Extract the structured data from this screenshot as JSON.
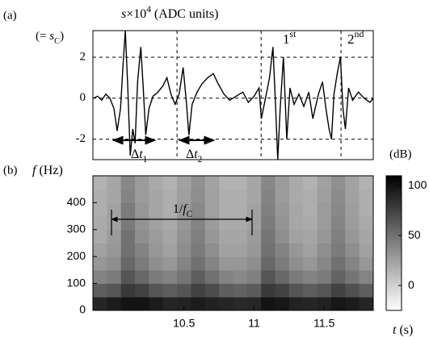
{
  "chart_data": [
    {
      "type": "line",
      "panel_label": "(a)",
      "ylabel": [
        "s",
        "×10",
        "4",
        " (ADC units)"
      ],
      "ylabel2": [
        "(= ",
        "s",
        "C",
        ")"
      ],
      "annotations": {
        "first": [
          "1",
          "st"
        ],
        "second": [
          "2",
          "nd"
        ],
        "dt1": [
          "Δ",
          "t",
          "1"
        ],
        "dt2": [
          "Δ",
          "t",
          "2"
        ]
      },
      "x": [
        9.855,
        9.884,
        9.913,
        9.942,
        9.971,
        10.0,
        10.023,
        10.047,
        10.064,
        10.081,
        10.099,
        10.116,
        10.134,
        10.151,
        10.169,
        10.192,
        10.209,
        10.227,
        10.25,
        10.279,
        10.314,
        10.349,
        10.378,
        10.407,
        10.436,
        10.465,
        10.494,
        10.517,
        10.535,
        10.558,
        10.593,
        10.628,
        10.669,
        10.709,
        10.744,
        10.785,
        10.826,
        10.872,
        10.919,
        10.959,
        11.0,
        11.035,
        11.052,
        11.081,
        11.11,
        11.134,
        11.151,
        11.169,
        11.186,
        11.209,
        11.233,
        11.256,
        11.285,
        11.32,
        11.355,
        11.39,
        11.419,
        11.459,
        11.488,
        11.512,
        11.535,
        11.552,
        11.57,
        11.593,
        11.616,
        11.634,
        11.651,
        11.674,
        11.703,
        11.744,
        11.785,
        11.826,
        11.85
      ],
      "values": [
        0.0,
        0.1,
        -0.1,
        0.2,
        0.0,
        -0.5,
        -1.6,
        -0.5,
        1.5,
        3.3,
        0.5,
        -2.8,
        -1.5,
        -2.2,
        0.8,
        2.5,
        0.5,
        -1.8,
        -0.5,
        0.1,
        0.3,
        0.6,
        1.0,
        0.2,
        -0.3,
        0.2,
        1.5,
        -0.2,
        -1.8,
        -0.3,
        0.3,
        0.7,
        1.0,
        1.2,
        0.7,
        0.2,
        -0.1,
        0.1,
        0.3,
        -0.2,
        0.1,
        0.5,
        -1.0,
        0.0,
        1.0,
        2.5,
        0.0,
        -3.0,
        -0.5,
        2.0,
        -2.0,
        0.5,
        -0.3,
        0.2,
        -0.4,
        0.3,
        -1.0,
        0.2,
        0.8,
        -0.5,
        -1.5,
        -2.0,
        0.2,
        1.2,
        2.0,
        -0.5,
        -1.5,
        0.5,
        -0.1,
        0.3,
        0.0,
        -0.2,
        0.0
      ],
      "color": "#000000",
      "xlim": [
        9.85,
        11.85
      ],
      "ylim": [
        -3,
        3.3
      ],
      "yticks": [
        2,
        0,
        -2
      ],
      "grid": true,
      "vlines": [
        10.45,
        11.05,
        11.62
      ]
    },
    {
      "type": "heatmap",
      "panel_label": "(b)",
      "ylabel": [
        "f",
        " (Hz)"
      ],
      "xlabel": [
        "t",
        " (s)"
      ],
      "annotation": [
        "1/",
        "f",
        "C"
      ],
      "t_edges": [
        9.85,
        9.95,
        10.05,
        10.15,
        10.25,
        10.35,
        10.45,
        10.55,
        10.65,
        10.75,
        10.85,
        10.95,
        11.05,
        11.15,
        11.25,
        11.35,
        11.45,
        11.55,
        11.65,
        11.75,
        11.85
      ],
      "f_edges": [
        0,
        50,
        100,
        150,
        200,
        250,
        300,
        350,
        400,
        450,
        500
      ],
      "z": [
        [
          90,
          95,
          100,
          100,
          95,
          90,
          92,
          95,
          92,
          90,
          88,
          90,
          100,
          98,
          92,
          90,
          92,
          98,
          95,
          90
        ],
        [
          60,
          65,
          80,
          75,
          65,
          60,
          65,
          75,
          70,
          60,
          58,
          62,
          80,
          75,
          65,
          60,
          65,
          75,
          68,
          60
        ],
        [
          40,
          45,
          65,
          55,
          45,
          40,
          48,
          60,
          50,
          40,
          38,
          42,
          65,
          55,
          45,
          40,
          45,
          58,
          48,
          40
        ],
        [
          30,
          35,
          55,
          45,
          35,
          30,
          40,
          50,
          40,
          30,
          30,
          35,
          55,
          45,
          35,
          30,
          38,
          50,
          40,
          30
        ],
        [
          25,
          30,
          50,
          40,
          30,
          25,
          35,
          45,
          35,
          25,
          25,
          30,
          50,
          40,
          30,
          25,
          35,
          45,
          35,
          25
        ],
        [
          20,
          28,
          50,
          35,
          28,
          22,
          32,
          42,
          30,
          22,
          22,
          28,
          48,
          35,
          25,
          22,
          30,
          42,
          30,
          22
        ],
        [
          20,
          25,
          45,
          32,
          25,
          20,
          30,
          40,
          28,
          20,
          20,
          25,
          45,
          32,
          22,
          20,
          28,
          40,
          28,
          20
        ],
        [
          18,
          25,
          45,
          30,
          22,
          18,
          28,
          38,
          25,
          18,
          18,
          25,
          42,
          30,
          22,
          18,
          28,
          38,
          26,
          18
        ],
        [
          18,
          22,
          40,
          28,
          22,
          18,
          26,
          35,
          25,
          18,
          18,
          22,
          40,
          28,
          20,
          18,
          26,
          36,
          25,
          18
        ],
        [
          16,
          22,
          38,
          28,
          20,
          16,
          25,
          34,
          24,
          16,
          16,
          22,
          38,
          28,
          20,
          16,
          25,
          34,
          24,
          16
        ]
      ],
      "xlim": [
        9.85,
        11.85
      ],
      "ylim": [
        0,
        500
      ],
      "xticks": [
        10.5,
        11,
        11.5
      ],
      "yticks": [
        0,
        100,
        200,
        300,
        400
      ],
      "colorbar": {
        "label": "(dB)",
        "clim": [
          -25,
          110
        ],
        "ticks": [
          0,
          50,
          100
        ]
      }
    }
  ]
}
